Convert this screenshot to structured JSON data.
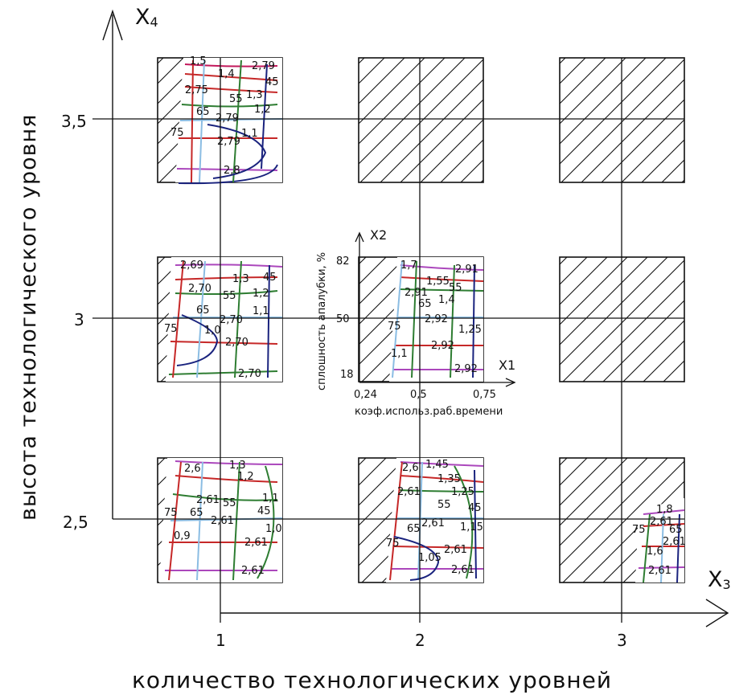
{
  "axes": {
    "x_label": "количество технологических уровней",
    "y_label": "высота технологического уровня",
    "x_name": "X",
    "x_sub": "3",
    "y_name": "X",
    "y_sub": "4",
    "x_ticks": [
      "1",
      "2",
      "3"
    ],
    "y_ticks": [
      "2,5",
      "3",
      "3,5"
    ]
  },
  "inset": {
    "x_axis": "X1",
    "y_axis": "X2",
    "x_label": "коэф.использ.раб.времени",
    "y_label": "сплошность апалубки, %",
    "x_ticks": [
      "0,24",
      "0,5",
      "0,75"
    ],
    "y_ticks": [
      "82",
      "50",
      "18"
    ]
  },
  "panels": {
    "p1_35": [
      "1,5",
      "1,4",
      "2,79",
      "45",
      "2,75",
      "55",
      "1,3",
      "1,2",
      "65",
      "2,79",
      "75",
      "1,1",
      "2,79",
      "2,8"
    ],
    "p1_3": [
      "2,69",
      "1,3",
      "45",
      "2,70",
      "55",
      "1,2",
      "65",
      "1,1",
      "75",
      "1,0",
      "2,70",
      "2,70",
      "2,70"
    ],
    "p1_25": [
      "2,6",
      "1,3",
      "1,2",
      "2,61",
      "55",
      "1,1",
      "45",
      "75",
      "65",
      "2,61",
      "1,0",
      "0,9",
      "2,61",
      "2,61"
    ],
    "p2_3": [
      "1,7",
      "2,91",
      "1,55",
      "55",
      "2,91",
      "65",
      "1,4",
      "2,92",
      "75",
      "1,25",
      "2,92",
      "1,1",
      "2,92"
    ],
    "p2_25": [
      "2,6",
      "1,45",
      "1,35",
      "2,61",
      "1,25",
      "55",
      "45",
      "2,61",
      "65",
      "1,15",
      "75",
      "2,61",
      "1,05",
      "2,61"
    ],
    "p3_25": [
      "1,8",
      "2,61",
      "75",
      "65",
      "2,61",
      "1,6",
      "2,61"
    ]
  }
}
